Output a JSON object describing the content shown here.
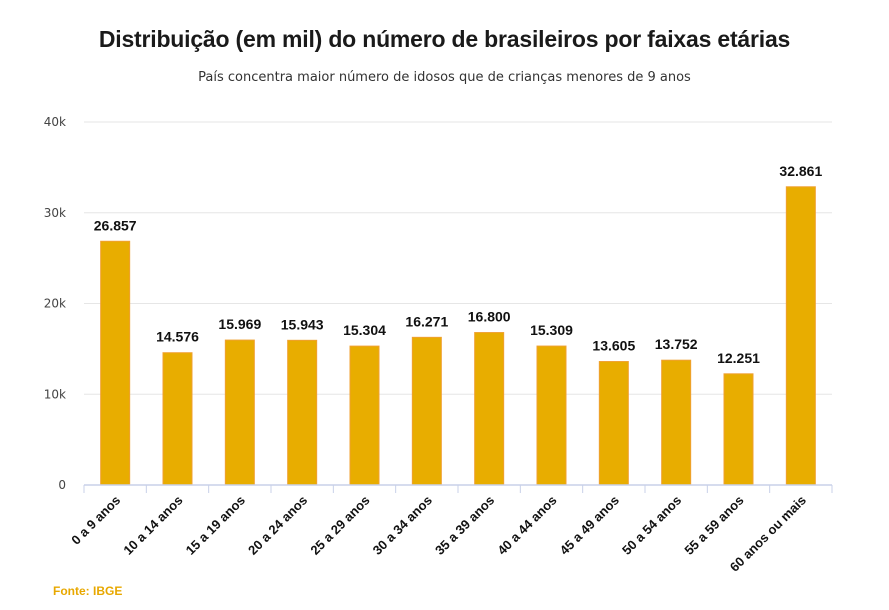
{
  "title": "Distribuição (em mil) do número de brasileiros por faixas etárias",
  "subtitle": "País concentra maior número de idosos que de crianças menores de 9 anos",
  "source": "Fonte: IBGE",
  "colors": {
    "bar": "#e8ad00",
    "bar_edge": "#f0a030",
    "grid": "#e6e6e6",
    "axis": "#c8d0e8",
    "source": "#e8a800"
  },
  "chart_data": {
    "type": "bar",
    "title": "Distribuição (em mil) do número de brasileiros por faixas etárias",
    "subtitle": "País concentra maior número de idosos que de crianças menores de 9 anos",
    "xlabel": "",
    "ylabel": "",
    "ylim": [
      0,
      40000
    ],
    "yticks": [
      0,
      10000,
      20000,
      30000,
      40000
    ],
    "ytick_labels": [
      "0",
      "10k",
      "20k",
      "30k",
      "40k"
    ],
    "grid": true,
    "legend": "none",
    "categories": [
      "0 a 9 anos",
      "10 a 14 anos",
      "15 a 19 anos",
      "20 a 24 anos",
      "25 a 29 anos",
      "30 a 34 anos",
      "35 a 39 anos",
      "40 a 44 anos",
      "45 a 49 anos",
      "50 a 54 anos",
      "55 a 59 anos",
      "60 anos ou mais"
    ],
    "values": [
      26857,
      14576,
      15969,
      15943,
      15304,
      16271,
      16800,
      15309,
      13605,
      13752,
      12251,
      32861
    ],
    "data_labels": [
      "26.857",
      "14.576",
      "15.969",
      "15.943",
      "15.304",
      "16.271",
      "16.800",
      "15.309",
      "13.605",
      "13.752",
      "12.251",
      "32.861"
    ]
  }
}
